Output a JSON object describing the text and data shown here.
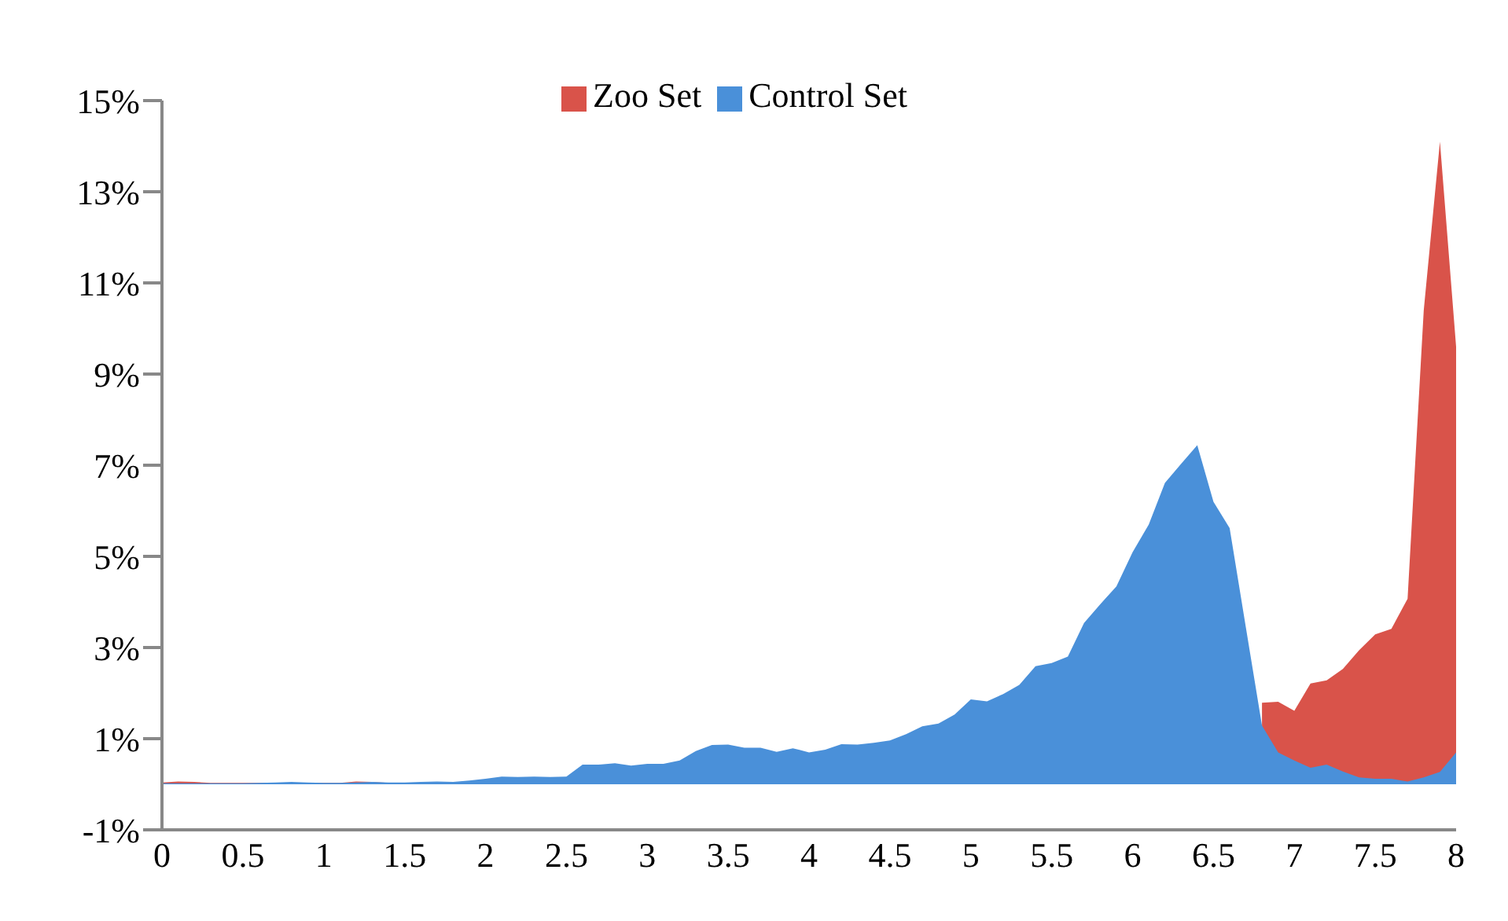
{
  "chart_data": {
    "type": "area",
    "x": [
      0,
      0.1,
      0.2,
      0.3,
      0.4,
      0.5,
      0.6,
      0.7,
      0.8,
      0.9,
      1,
      1.1,
      1.2,
      1.3,
      1.4,
      1.5,
      1.6,
      1.7,
      1.8,
      1.9,
      2,
      2.1,
      2.2,
      2.3,
      2.4,
      2.5,
      2.6,
      2.7,
      2.8,
      2.9,
      3,
      3.1,
      3.2,
      3.3,
      3.4,
      3.5,
      3.6,
      3.7,
      3.8,
      3.9,
      4,
      4.1,
      4.2,
      4.3,
      4.4,
      4.5,
      4.6,
      4.7,
      4.8,
      4.9,
      5,
      5.1,
      5.2,
      5.3,
      5.4,
      5.5,
      5.6,
      5.7,
      5.8,
      5.9,
      6,
      6.1,
      6.2,
      6.3,
      6.4,
      6.5,
      6.6,
      6.7,
      6.8,
      6.9,
      7,
      7.1,
      7.2,
      7.3,
      7.4,
      7.5,
      7.6,
      7.7,
      7.8,
      7.9,
      8
    ],
    "series": [
      {
        "name": "Zoo Set",
        "color": "#d9534a",
        "values": [
          0.04,
          0.06,
          0.05,
          0.03,
          0.03,
          0.03,
          0.03,
          0.03,
          0.03,
          0.03,
          0.03,
          0.03,
          0.06,
          0.05,
          0.03,
          0.03,
          0.03,
          0.03,
          0.03,
          0.03,
          0.03,
          0.03,
          0.03,
          0.03,
          0.03,
          0.03,
          0.03,
          0.03,
          0.03,
          0.03,
          0.03,
          0.03,
          0.03,
          0.03,
          0.03,
          0.03,
          0.03,
          0.03,
          0.03,
          0.03,
          0.03,
          0.03,
          0.03,
          0.03,
          0.03,
          0.03,
          0.03,
          0.03,
          0.03,
          0.03,
          0.03,
          0.03,
          0.03,
          0.03,
          0.03,
          0.03,
          0.03,
          0.03,
          0.03,
          0.03,
          0.03,
          0.03,
          0.03,
          0.03,
          0.03,
          0.03,
          0.03,
          null,
          1.79,
          1.81,
          1.61,
          2.21,
          2.28,
          2.53,
          2.94,
          3.29,
          3.41,
          4.07,
          10.4,
          14.1,
          9.6
        ]
      },
      {
        "name": "Control Set",
        "color": "#4a90d9",
        "values": [
          0.02,
          0.02,
          0.02,
          0.02,
          0.02,
          0.02,
          0.03,
          0.04,
          0.05,
          0.04,
          0.03,
          0.03,
          0.04,
          0.05,
          0.04,
          0.04,
          0.05,
          0.06,
          0.05,
          0.08,
          0.12,
          0.17,
          0.16,
          0.17,
          0.16,
          0.17,
          0.43,
          0.43,
          0.46,
          0.41,
          0.45,
          0.45,
          0.52,
          0.73,
          0.86,
          0.87,
          0.8,
          0.8,
          0.71,
          0.79,
          0.7,
          0.76,
          0.88,
          0.87,
          0.91,
          0.96,
          1.1,
          1.27,
          1.33,
          1.53,
          1.86,
          1.82,
          1.98,
          2.18,
          2.59,
          2.66,
          2.8,
          3.54,
          3.95,
          4.34,
          5.09,
          5.7,
          6.61,
          7.03,
          7.44,
          6.2,
          5.62,
          3.45,
          1.29,
          0.7,
          0.52,
          0.36,
          0.43,
          0.28,
          0.15,
          0.12,
          0.12,
          0.06,
          0.15,
          0.27,
          0.7
        ]
      }
    ],
    "xlim": [
      0,
      8
    ],
    "xticks": [
      0,
      0.5,
      1,
      1.5,
      2,
      2.5,
      3,
      3.5,
      4,
      4.5,
      5,
      5.5,
      6,
      6.5,
      7,
      7.5,
      8
    ],
    "ylim": [
      -1,
      15
    ],
    "yticks": [
      {
        "value": -1,
        "label": "-1%"
      },
      {
        "value": 1,
        "label": "1%"
      },
      {
        "value": 3,
        "label": "3%"
      },
      {
        "value": 5,
        "label": "5%"
      },
      {
        "value": 7,
        "label": "7%"
      },
      {
        "value": 9,
        "label": "9%"
      },
      {
        "value": 11,
        "label": "11%"
      },
      {
        "value": 13,
        "label": "13%"
      },
      {
        "value": 15,
        "label": "15%"
      }
    ],
    "grid": false,
    "legend": "top"
  }
}
